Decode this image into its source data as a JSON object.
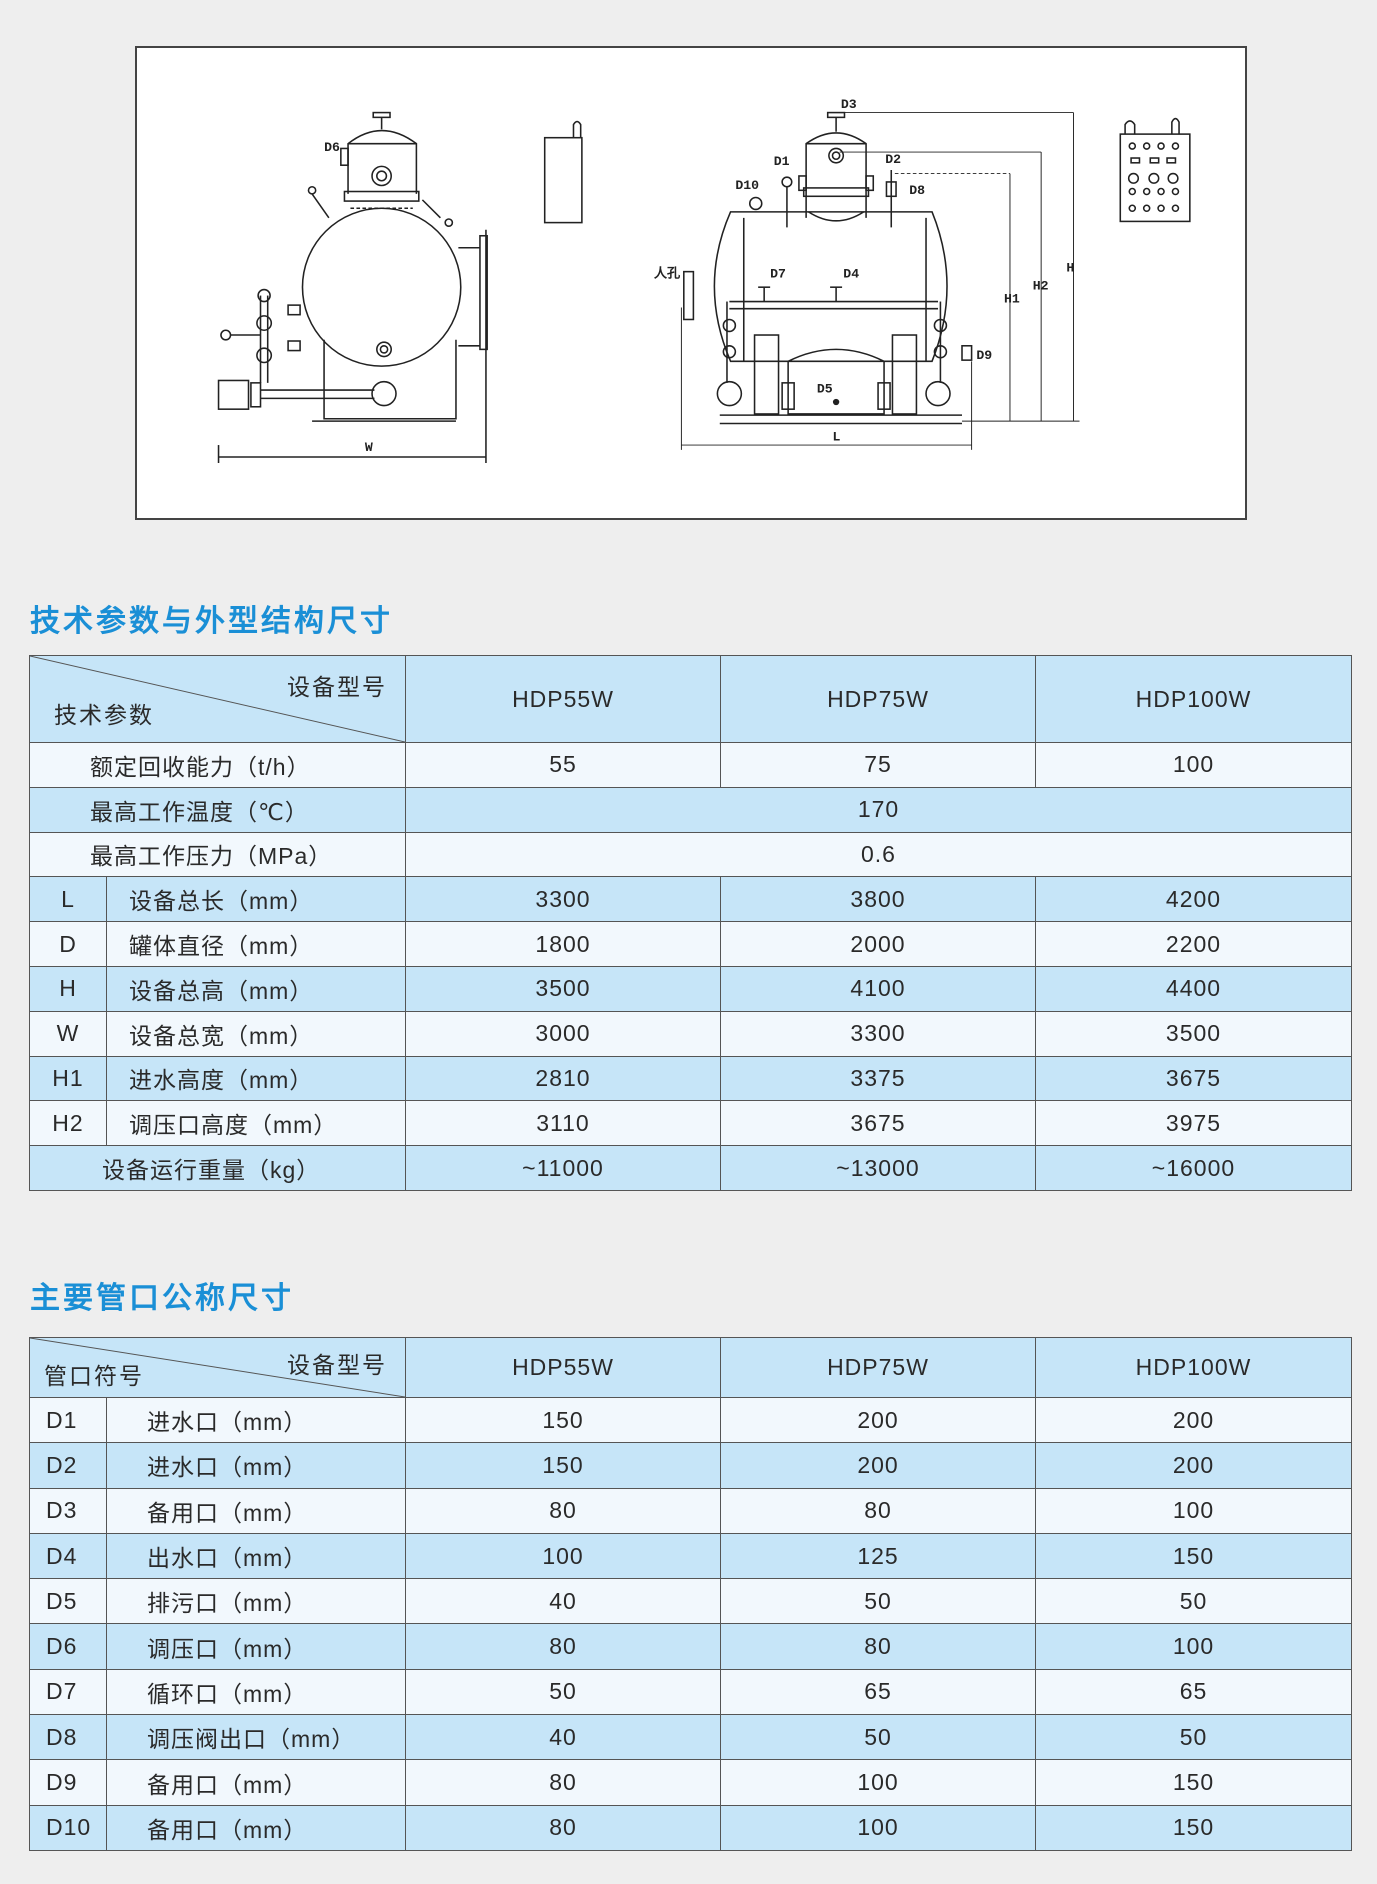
{
  "drawing": {
    "labels": {
      "D1": "D1",
      "D2": "D2",
      "D3": "D3",
      "D4": "D4",
      "D5": "D5",
      "D6": "D6",
      "D7": "D7",
      "D8": "D8",
      "D9": "D9",
      "D10": "D10",
      "H": "H",
      "H1": "H1",
      "H2": "H2",
      "L": "L",
      "W": "W",
      "manhole": "人孔"
    }
  },
  "section1": {
    "title": "技术参数与外型结构尺寸",
    "header": {
      "top_right": "设备型号",
      "bottom_left": "技术参数",
      "models": [
        "HDP55W",
        "HDP75W",
        "HDP100W"
      ]
    },
    "rows": [
      {
        "label": "额定回收能力（t/h）",
        "values": [
          "55",
          "75",
          "100"
        ]
      },
      {
        "label": "最高工作温度（℃）",
        "merged": "170"
      },
      {
        "label": "最高工作压力（MPa）",
        "merged": "0.6"
      },
      {
        "code": "L",
        "label": "设备总长（mm）",
        "values": [
          "3300",
          "3800",
          "4200"
        ]
      },
      {
        "code": "D",
        "label": "罐体直径（mm）",
        "values": [
          "1800",
          "2000",
          "2200"
        ]
      },
      {
        "code": "H",
        "label": "设备总高（mm）",
        "values": [
          "3500",
          "4100",
          "4400"
        ]
      },
      {
        "code": "W",
        "label": "设备总宽（mm）",
        "values": [
          "3000",
          "3300",
          "3500"
        ]
      },
      {
        "code": "H1",
        "label": "进水高度（mm）",
        "values": [
          "2810",
          "3375",
          "3675"
        ]
      },
      {
        "code": "H2",
        "label": "调压口高度（mm）",
        "values": [
          "3110",
          "3675",
          "3975"
        ]
      },
      {
        "label": "设备运行重量（kg）",
        "values": [
          "~11000",
          "~13000",
          "~16000"
        ]
      }
    ]
  },
  "section2": {
    "title": "主要管口公称尺寸",
    "header": {
      "top_right": "设备型号",
      "bottom_left": "管口符号",
      "models": [
        "HDP55W",
        "HDP75W",
        "HDP100W"
      ]
    },
    "rows": [
      {
        "code": "D1",
        "label": "进水口（mm）",
        "values": [
          "150",
          "200",
          "200"
        ]
      },
      {
        "code": "D2",
        "label": "进水口（mm）",
        "values": [
          "150",
          "200",
          "200"
        ]
      },
      {
        "code": "D3",
        "label": "备用口（mm）",
        "values": [
          "80",
          "80",
          "100"
        ]
      },
      {
        "code": "D4",
        "label": "出水口（mm）",
        "values": [
          "100",
          "125",
          "150"
        ]
      },
      {
        "code": "D5",
        "label": "排污口（mm）",
        "values": [
          "40",
          "50",
          "50"
        ]
      },
      {
        "code": "D6",
        "label": "调压口（mm）",
        "values": [
          "80",
          "80",
          "100"
        ]
      },
      {
        "code": "D7",
        "label": "循环口（mm）",
        "values": [
          "50",
          "65",
          "65"
        ]
      },
      {
        "code": "D8",
        "label": "调压阀出口（mm）",
        "values": [
          "40",
          "50",
          "50"
        ]
      },
      {
        "code": "D9",
        "label": "备用口（mm）",
        "values": [
          "80",
          "100",
          "150"
        ]
      },
      {
        "code": "D10",
        "label": "备用口（mm）",
        "values": [
          "80",
          "100",
          "150"
        ]
      }
    ]
  },
  "colors": {
    "title": "#1a8fd6",
    "row_blue": "#c6e5f8",
    "row_light": "#f2f8fd",
    "border": "#555555",
    "background": "#eeeeee"
  }
}
